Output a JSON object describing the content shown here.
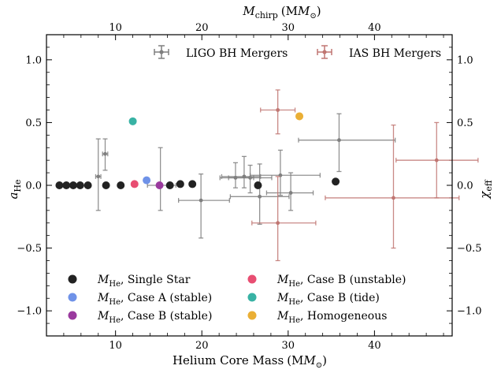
{
  "chart_data": {
    "type": "scatter",
    "xlabel_main": "Helium Core Mass",
    "xlabel_unit": "(M",
    "xlabel_close": ")",
    "xlabel_top_main": "M",
    "xlabel_top_sub": "chirp",
    "xlabel_top_unit": "(M",
    "xlabel_top_close": ")",
    "ylabel_main": "a",
    "ylabel_sub": "He",
    "ylabel_right_main": "χ",
    "ylabel_right_sub": "eff",
    "xlim": [
      2.0,
      49.0
    ],
    "ylim": [
      -1.2,
      1.2
    ],
    "xticks_major": [
      10,
      20,
      30,
      40
    ],
    "xticks_minor": [
      2,
      4,
      6,
      8,
      12,
      14,
      16,
      18,
      22,
      24,
      26,
      28,
      32,
      34,
      36,
      38,
      42,
      44,
      46,
      48
    ],
    "x_tick_labels": [
      "10",
      "20",
      "30",
      "40"
    ],
    "top_xticks_major": [
      10,
      20,
      30,
      40
    ],
    "top_tick_labels": [
      "10",
      "20",
      "30",
      "40"
    ],
    "yticks_major": [
      -1.0,
      -0.5,
      0.0,
      0.5,
      1.0
    ],
    "y_tick_labels": [
      "−1.0",
      "−0.5",
      "0.0",
      "0.5",
      "1.0"
    ],
    "sun_symbol": "⊙",
    "series": [
      {
        "name": "Single Star",
        "color": "#222222",
        "x": [
          3.5,
          4.3,
          5.1,
          5.9,
          6.8,
          8.9,
          10.6,
          16.3,
          17.5,
          18.9,
          26.5,
          35.5
        ],
        "y": [
          0.0,
          0.0,
          0.0,
          0.0,
          0.0,
          0.0,
          0.0,
          0.0,
          0.01,
          0.01,
          0.0,
          0.03
        ]
      },
      {
        "name": "Case A (stable)",
        "color": "#6f92e8",
        "x": [
          13.6
        ],
        "y": [
          0.04
        ]
      },
      {
        "name": "Case B (stable)",
        "color": "#9a3a9e",
        "x": [
          15.1
        ],
        "y": [
          0.0
        ]
      },
      {
        "name": "Case B (unstable)",
        "color": "#e84e72",
        "x": [
          12.2
        ],
        "y": [
          0.01
        ]
      },
      {
        "name": "Case B (tide)",
        "color": "#38b2a4",
        "x": [
          12.0
        ],
        "y": [
          0.51
        ]
      },
      {
        "name": "Homogeneous",
        "color": "#eaaf35",
        "x": [
          31.3
        ],
        "y": [
          0.55
        ]
      }
    ],
    "ligo": {
      "name": "LIGO BH Mergers",
      "color": "#7f7f7f",
      "points": [
        {
          "x": 8.8,
          "y": 0.25,
          "xerr": [
            0.3,
            0.3
          ],
          "yerr": [
            0.13,
            0.12
          ]
        },
        {
          "x": 8.0,
          "y": 0.07,
          "xerr": [
            0.3,
            0.3
          ],
          "yerr": [
            0.27,
            0.3
          ]
        },
        {
          "x": 15.2,
          "y": 0.0,
          "xerr": [
            1.5,
            1.8
          ],
          "yerr": [
            0.2,
            0.3
          ]
        },
        {
          "x": 19.9,
          "y": -0.12,
          "xerr": [
            2.6,
            3.3
          ],
          "yerr": [
            0.3,
            0.21
          ]
        },
        {
          "x": 23.9,
          "y": 0.06,
          "xerr": [
            1.8,
            2.1
          ],
          "yerr": [
            0.08,
            0.12
          ]
        },
        {
          "x": 24.9,
          "y": 0.07,
          "xerr": [
            2.6,
            1.9
          ],
          "yerr": [
            0.09,
            0.16
          ]
        },
        {
          "x": 26.7,
          "y": -0.09,
          "xerr": [
            3.4,
            3.4
          ],
          "yerr": [
            0.22,
            0.26
          ]
        },
        {
          "x": 29.1,
          "y": 0.08,
          "xerr": [
            3.5,
            4.6
          ],
          "yerr": [
            0.16,
            0.2
          ]
        },
        {
          "x": 30.3,
          "y": -0.06,
          "xerr": [
            2.8,
            2.6
          ],
          "yerr": [
            0.14,
            0.16
          ]
        },
        {
          "x": 25.6,
          "y": 0.06,
          "xerr": [
            2.5,
            2.5
          ],
          "yerr": [
            0.12,
            0.1
          ]
        },
        {
          "x": 35.9,
          "y": 0.36,
          "xerr": [
            4.7,
            6.5
          ],
          "yerr": [
            0.25,
            0.21
          ]
        }
      ]
    },
    "ias": {
      "name": "IAS BH Mergers",
      "color": "#c07672",
      "points": [
        {
          "x": 28.8,
          "y": 0.6,
          "xerr": [
            2.0,
            2.0
          ],
          "yerr": [
            0.19,
            0.16
          ]
        },
        {
          "x": 28.8,
          "y": -0.3,
          "xerr": [
            3.0,
            4.4
          ],
          "yerr": [
            0.3,
            0.37
          ]
        },
        {
          "x": 42.2,
          "y": -0.1,
          "xerr": [
            7.9,
            7.6
          ],
          "yerr": [
            0.4,
            0.58
          ]
        },
        {
          "x": 47.2,
          "y": 0.2,
          "xerr": [
            4.7,
            4.8
          ],
          "yerr": [
            0.3,
            0.3
          ]
        }
      ]
    },
    "legend_top": {
      "ligo_label": "LIGO BH Mergers",
      "ias_label": "IAS BH Mergers"
    },
    "legend_bottom": {
      "mass_main": "M",
      "mass_sub": "He",
      "items": [
        "Single Star",
        "Case B (unstable)",
        "Case A (stable)",
        "Case B (tide)",
        "Case B (stable)",
        "Homogeneous"
      ]
    }
  }
}
